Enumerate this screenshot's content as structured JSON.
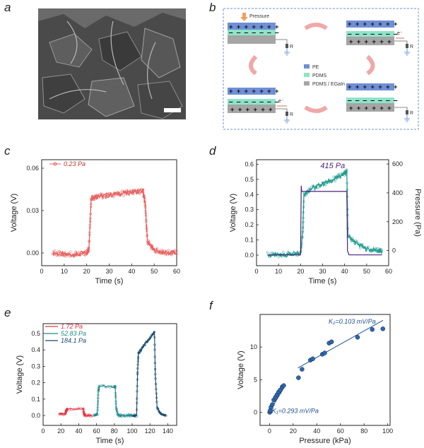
{
  "panels": {
    "a": "a",
    "b": "b",
    "c": "c",
    "d": "d",
    "e": "e",
    "f": "f"
  },
  "schematic": {
    "pressure_label": "Pressure",
    "legend": [
      {
        "label": "PE",
        "color": "#6f8fd6"
      },
      {
        "label": "PDMS",
        "color": "#8fe3c8"
      },
      {
        "label": "PDMS / EGaIn",
        "color": "#a5a5a5"
      }
    ],
    "resistor": "R",
    "electron": "e⁻",
    "plus_row": "+ + + + + + +",
    "minus_row": "‒ ‒ ‒ ‒ ‒ ‒ ‒",
    "plus_row_short": "+ + + + + +"
  },
  "chart_data": [
    {
      "panel": "c",
      "type": "line",
      "xlabel": "Time (s)",
      "ylabel": "Voltage (V)",
      "xlim": [
        0,
        60
      ],
      "ylim": [
        -0.009,
        0.066
      ],
      "xticks": [
        "0",
        "10",
        "20",
        "30",
        "40",
        "50",
        "60"
      ],
      "yticks": [
        "0.00",
        "0.03",
        "0.06"
      ],
      "series": [
        {
          "name": "0.23 Pa",
          "color": "#e8605f",
          "x": [
            5,
            10,
            15,
            20,
            21,
            22,
            25,
            30,
            35,
            40,
            45,
            46,
            47,
            50,
            55,
            60
          ],
          "y": [
            0.0,
            -0.001,
            -0.001,
            0.0,
            0.003,
            0.039,
            0.04,
            0.041,
            0.042,
            0.043,
            0.044,
            0.035,
            0.008,
            0.002,
            0.0,
            0.0
          ]
        }
      ]
    },
    {
      "panel": "d",
      "type": "line",
      "xlabel": "Time (s)",
      "ylabel": "Voltage (V)",
      "y2label": "Pressure (Pa)",
      "xlim": [
        0,
        60
      ],
      "ylim": [
        -0.07,
        0.63
      ],
      "y2lim": [
        -105,
        630
      ],
      "xticks": [
        "0",
        "10",
        "20",
        "30",
        "40",
        "50",
        "60"
      ],
      "yticks": [
        "0.0",
        "0.1",
        "0.2",
        "0.3",
        "0.4",
        "0.5",
        "0.6"
      ],
      "y2ticks": [
        "0",
        "200",
        "400",
        "600"
      ],
      "annotation": "415 Pa",
      "series": [
        {
          "name": "Voltage",
          "axis": "left",
          "color": "#1f9c8d",
          "x": [
            5,
            10,
            15,
            20,
            21,
            21.5,
            25,
            30,
            35,
            40,
            41,
            41.5,
            45,
            50,
            55,
            57
          ],
          "y": [
            0.0,
            0.0,
            0.005,
            0.01,
            0.15,
            0.4,
            0.44,
            0.47,
            0.5,
            0.54,
            0.55,
            0.13,
            0.08,
            0.04,
            0.03,
            0.02
          ]
        },
        {
          "name": "Pressure",
          "axis": "right",
          "color": "#4b1f7a",
          "x": [
            5,
            20,
            20.3,
            20.5,
            41,
            41.3,
            42,
            57
          ],
          "y": [
            -30,
            -30,
            450,
            410,
            410,
            0,
            -30,
            -30
          ]
        }
      ]
    },
    {
      "panel": "e",
      "type": "line",
      "xlabel": "Time (s)",
      "ylabel": "Voltage (V)",
      "xlim": [
        0,
        150
      ],
      "ylim": [
        -0.06,
        0.56
      ],
      "xticks": [
        "0",
        "20",
        "40",
        "60",
        "80",
        "100",
        "120",
        "140"
      ],
      "yticks": [
        "0.0",
        "0.1",
        "0.2",
        "0.3",
        "0.4",
        "0.5"
      ],
      "series": [
        {
          "name": "1.72 Pa",
          "color": "#e8303c",
          "x": [
            18,
            25,
            26,
            27,
            45,
            46,
            47,
            55
          ],
          "y": [
            0.01,
            0.01,
            0.03,
            0.04,
            0.045,
            0.01,
            0.0,
            0.0
          ]
        },
        {
          "name": "52.83 Pa",
          "color": "#1f8a8a",
          "x": [
            57,
            61,
            62,
            63,
            80,
            81,
            82,
            84,
            88,
            95,
            100
          ],
          "y": [
            0.0,
            0.01,
            0.15,
            0.18,
            0.175,
            0.18,
            0.05,
            0.0,
            0.0,
            0.0,
            0.0
          ]
        },
        {
          "name": "184.1 Pa",
          "color": "#15496e",
          "x": [
            101,
            105,
            106,
            107,
            110,
            115,
            120,
            125,
            126,
            128,
            132,
            138
          ],
          "y": [
            0.0,
            0.0,
            0.25,
            0.38,
            0.4,
            0.44,
            0.47,
            0.51,
            0.25,
            0.05,
            0.01,
            0.0
          ]
        }
      ]
    },
    {
      "panel": "f",
      "type": "scatter",
      "xlabel": "Pressure (kPa)",
      "ylabel": "Voltage (V)",
      "xlim": [
        -8,
        102
      ],
      "ylim": [
        -2,
        15
      ],
      "xticks": [
        "0",
        "20",
        "40",
        "60",
        "80",
        "100"
      ],
      "yticks": [
        "0",
        "5",
        "10"
      ],
      "annotations": [
        "K₂=0.103 mV/Pa",
        "K₁=0.293 mV/Pa"
      ],
      "series": [
        {
          "name": "data",
          "color": "#1f4f8f",
          "x": [
            0.2,
            0.6,
            1.3,
            2.4,
            3.6,
            5.0,
            6.3,
            7.7,
            9.0,
            10.7,
            12.0,
            24.5,
            27.5,
            34.6,
            36.6,
            44.7,
            46.7,
            50.4,
            52.5,
            74.5,
            86.9,
            95.9
          ],
          "y": [
            0.0,
            0.3,
            0.8,
            1.2,
            1.9,
            2.3,
            2.7,
            3.1,
            3.4,
            3.9,
            4.1,
            5.3,
            6.6,
            8.0,
            8.2,
            8.9,
            9.1,
            10.6,
            10.8,
            11.5,
            12.7,
            12.8
          ]
        }
      ],
      "fits": [
        {
          "x": [
            0,
            13
          ],
          "y": [
            0.1,
            4.0
          ]
        },
        {
          "x": [
            24,
            96
          ],
          "y": [
            6.8,
            14.1
          ]
        }
      ]
    }
  ]
}
